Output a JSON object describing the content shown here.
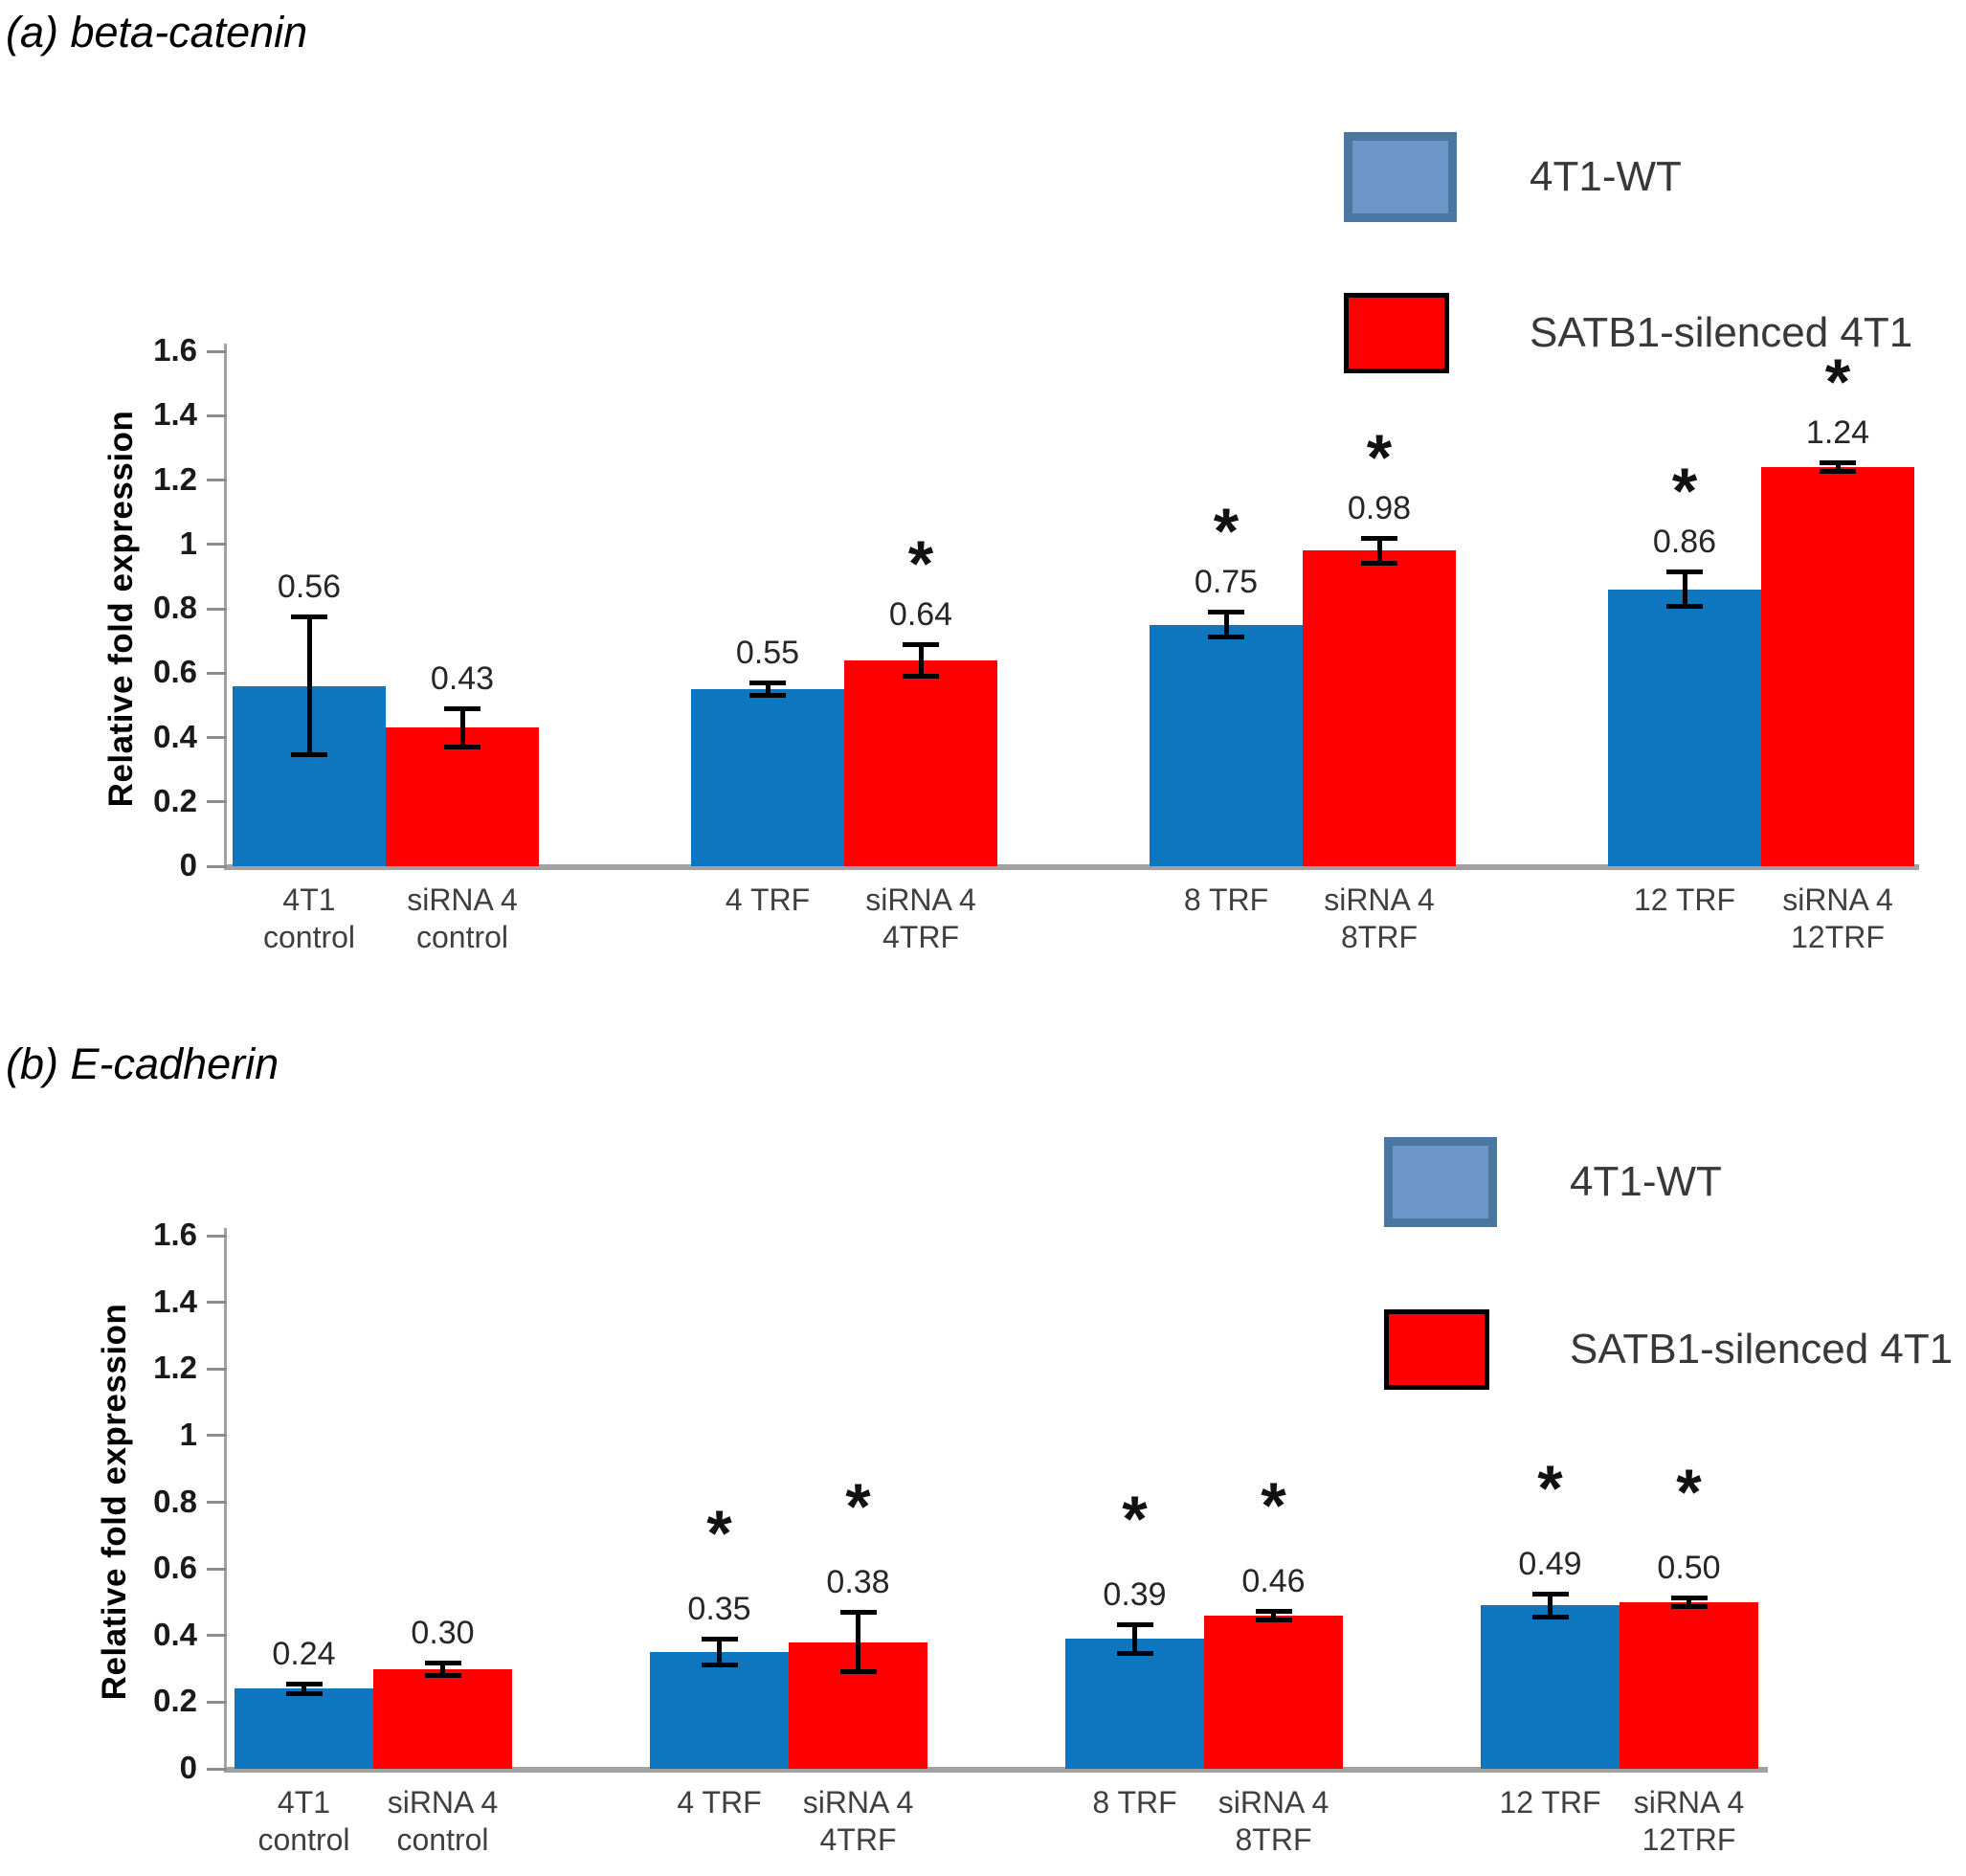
{
  "figure": {
    "description": "Two-panel bar chart of relative fold expression in 4T1-WT vs SATB1-silenced 4T1 cells"
  },
  "panels": [
    {
      "title": "(a) beta-catenin",
      "legend": [
        {
          "label": "4T1-WT",
          "fill": "#6D96C8",
          "border": "#4A76A2"
        },
        {
          "label": "SATB1-silenced 4T1",
          "fill": "#FF0000",
          "border": "#000000"
        }
      ]
    },
    {
      "title": "(b) E-cadherin",
      "legend": [
        {
          "label": "4T1-WT",
          "fill": "#6D96C8",
          "border": "#4A76A2"
        },
        {
          "label": "SATB1-silenced 4T1",
          "fill": "#FF0000",
          "border": "#000000"
        }
      ]
    }
  ],
  "chart_data": [
    {
      "type": "bar",
      "title": "(a) beta-catenin",
      "ylabel": "Relative fold expression",
      "xlabel": "",
      "ylim": [
        0,
        1.6
      ],
      "yticks": [
        0,
        0.2,
        0.4,
        0.6,
        0.8,
        1,
        1.2,
        1.4,
        1.6
      ],
      "ytick_labels": [
        "0",
        "0.2",
        "0.4",
        "0.6",
        "0.8",
        "1",
        "1.2",
        "1.4",
        "1.6"
      ],
      "grid": false,
      "legend_position": "top-right",
      "series_names": [
        "4T1-WT",
        "SATB1-silenced 4T1"
      ],
      "series_colors": [
        "#0D76BE",
        "#FF0000"
      ],
      "groups": [
        {
          "bars": [
            {
              "series": "4T1-WT",
              "x_label": [
                "4T1",
                "control"
              ],
              "value": 0.56,
              "error": 0.215,
              "significant": false
            },
            {
              "series": "SATB1-silenced 4T1",
              "x_label": [
                "siRNA 4",
                "control"
              ],
              "value": 0.43,
              "error": 0.06,
              "significant": false
            }
          ]
        },
        {
          "bars": [
            {
              "series": "4T1-WT",
              "x_label": [
                "4 TRF"
              ],
              "value": 0.55,
              "error": 0.02,
              "significant": false
            },
            {
              "series": "SATB1-silenced 4T1",
              "x_label": [
                "siRNA 4",
                "4TRF"
              ],
              "value": 0.64,
              "error": 0.05,
              "significant": true
            }
          ]
        },
        {
          "bars": [
            {
              "series": "4T1-WT",
              "x_label": [
                "8 TRF"
              ],
              "value": 0.75,
              "error": 0.04,
              "significant": true
            },
            {
              "series": "SATB1-silenced 4T1",
              "x_label": [
                "siRNA 4",
                "8TRF"
              ],
              "value": 0.98,
              "error": 0.04,
              "significant": true
            }
          ]
        },
        {
          "bars": [
            {
              "series": "4T1-WT",
              "x_label": [
                "12 TRF"
              ],
              "value": 0.86,
              "error": 0.055,
              "significant": true
            },
            {
              "series": "SATB1-silenced 4T1",
              "x_label": [
                "siRNA 4",
                "12TRF"
              ],
              "value": 1.24,
              "error": 0.015,
              "significant": true
            }
          ]
        }
      ]
    },
    {
      "type": "bar",
      "title": "(b) E-cadherin",
      "ylabel": "Relative fold expression",
      "xlabel": "",
      "ylim": [
        0,
        1.6
      ],
      "yticks": [
        0,
        0.2,
        0.4,
        0.6,
        0.8,
        1,
        1.2,
        1.4,
        1.6
      ],
      "ytick_labels": [
        "0",
        "0.2",
        "0.4",
        "0.6",
        "0.8",
        "1",
        "1.2",
        "1.4",
        "1.6"
      ],
      "grid": false,
      "legend_position": "top-right",
      "series_names": [
        "4T1-WT",
        "SATB1-silenced 4T1"
      ],
      "series_colors": [
        "#0D76BE",
        "#FF0000"
      ],
      "groups": [
        {
          "bars": [
            {
              "series": "4T1-WT",
              "x_label": [
                "4T1",
                "control"
              ],
              "value": 0.24,
              "error": 0.015,
              "significant": false
            },
            {
              "series": "SATB1-silenced 4T1",
              "x_label": [
                "siRNA 4",
                "control"
              ],
              "value": 0.3,
              "error": 0.02,
              "significant": false
            }
          ]
        },
        {
          "bars": [
            {
              "series": "4T1-WT",
              "x_label": [
                "4 TRF"
              ],
              "value": 0.35,
              "error": 0.04,
              "significant": true
            },
            {
              "series": "SATB1-silenced 4T1",
              "x_label": [
                "siRNA 4",
                "4TRF"
              ],
              "value": 0.38,
              "error": 0.09,
              "significant": true
            }
          ]
        },
        {
          "bars": [
            {
              "series": "4T1-WT",
              "x_label": [
                "8 TRF"
              ],
              "value": 0.39,
              "error": 0.045,
              "significant": true
            },
            {
              "series": "SATB1-silenced 4T1",
              "x_label": [
                "siRNA 4",
                "8TRF"
              ],
              "value": 0.46,
              "error": 0.015,
              "significant": true
            }
          ]
        },
        {
          "bars": [
            {
              "series": "4T1-WT",
              "x_label": [
                "12 TRF"
              ],
              "value": 0.49,
              "error": 0.035,
              "significant": true
            },
            {
              "series": "SATB1-silenced 4T1",
              "x_label": [
                "siRNA 4",
                "12TRF"
              ],
              "value": 0.5,
              "error": 0.015,
              "significant": true
            }
          ]
        }
      ]
    }
  ]
}
